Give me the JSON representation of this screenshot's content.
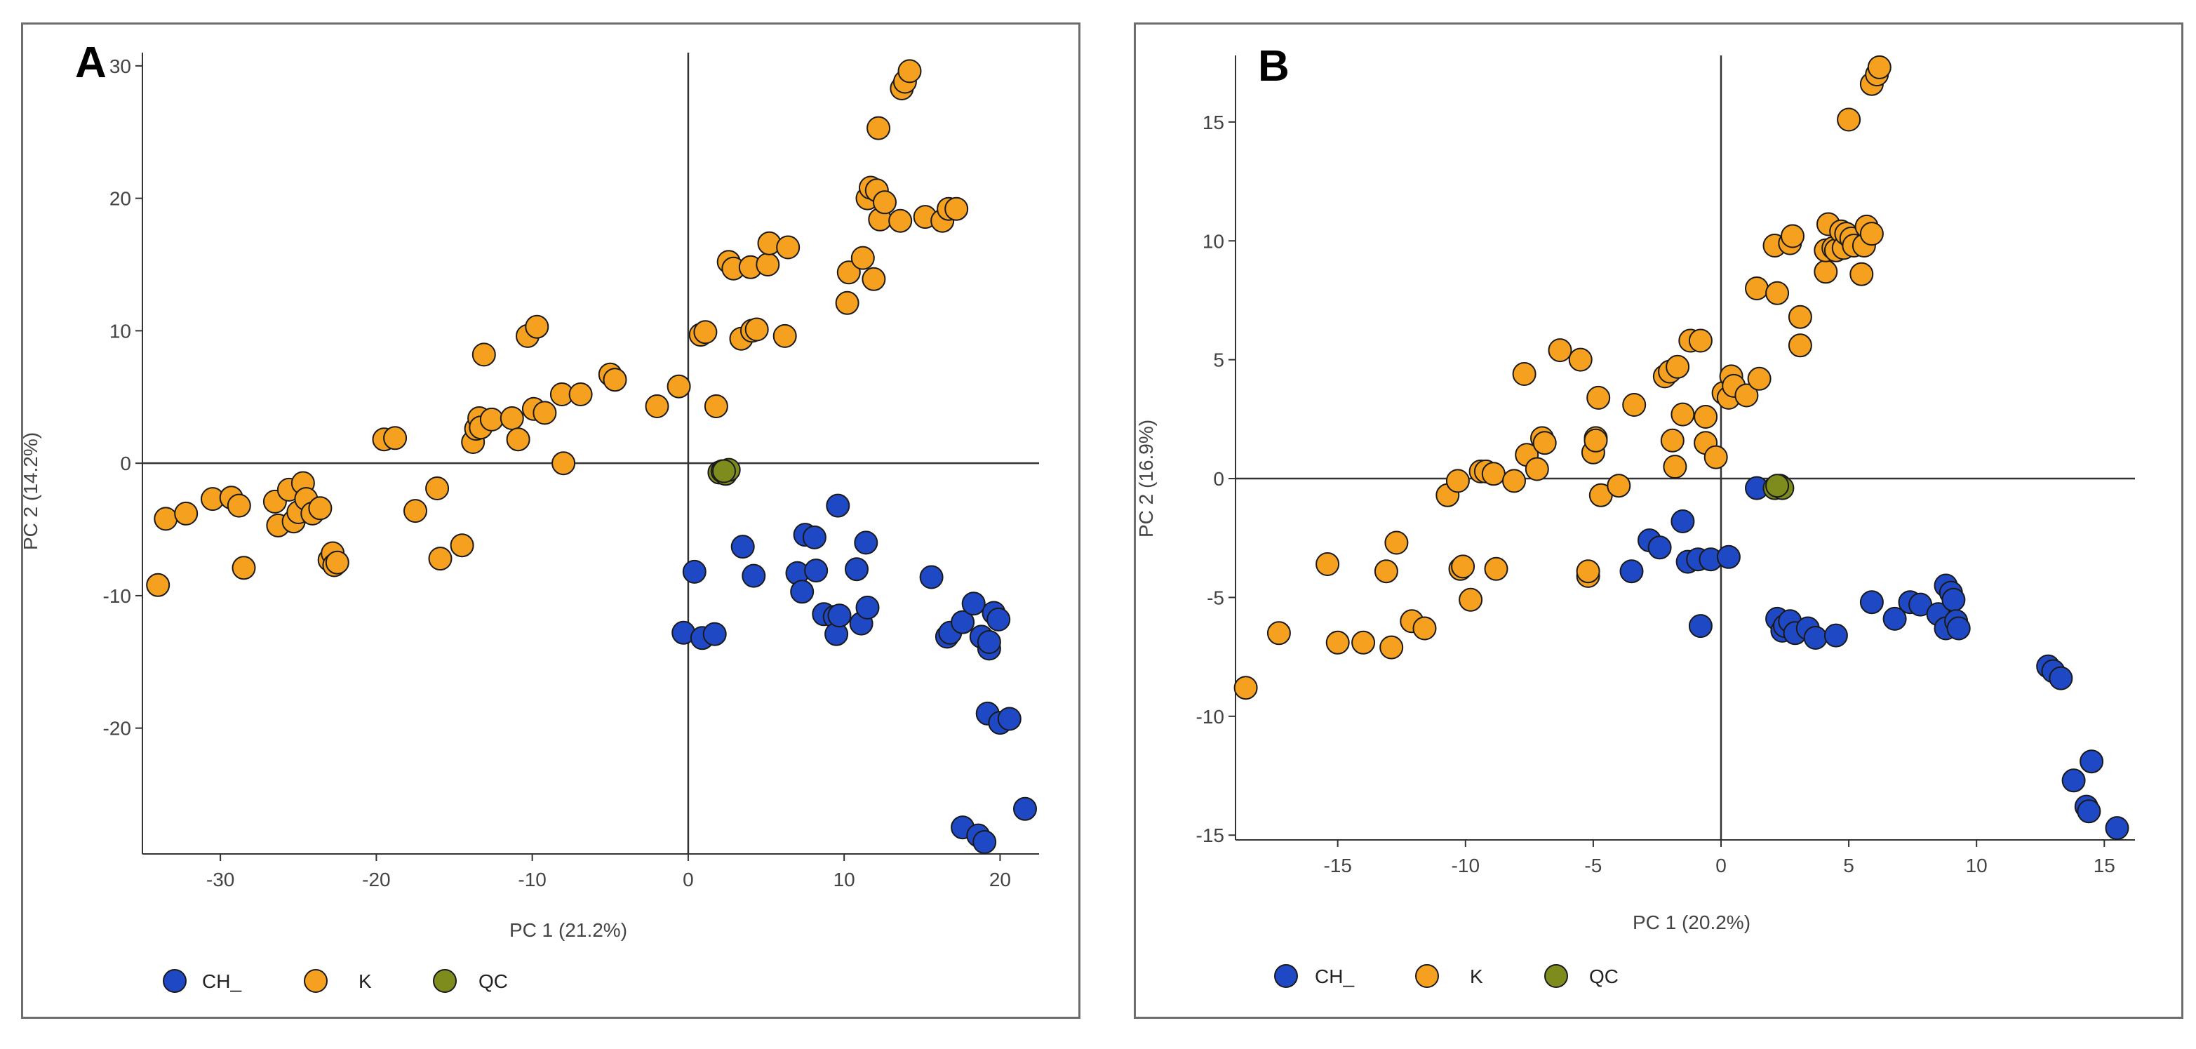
{
  "colors": {
    "CH_": "#1f48c4",
    "K": "#f5a01f",
    "QC": "#7d8c1d",
    "outline": "#1a1a1a",
    "axis": "#333333"
  },
  "chart_data": [
    {
      "type": "scatter",
      "panel_label": "A",
      "xlabel": "PC 1 (21.2%)",
      "ylabel": "PC 2 (14.2%)",
      "xlim": [
        -35,
        22.5
      ],
      "ylim": [
        -29.5,
        31
      ],
      "xticks": [
        -30,
        -20,
        -10,
        0,
        10,
        20
      ],
      "yticks": [
        -20,
        -10,
        0,
        10,
        20,
        30
      ],
      "legend": [
        "CH_",
        "K",
        "QC"
      ],
      "series": [
        {
          "name": "K",
          "points": [
            [
              -34,
              -9.2
            ],
            [
              -33.5,
              -4.2
            ],
            [
              -32.2,
              -3.8
            ],
            [
              -30.5,
              -2.7
            ],
            [
              -29.3,
              -2.6
            ],
            [
              -28.8,
              -3.2
            ],
            [
              -28.5,
              -7.9
            ],
            [
              -26.5,
              -2.9
            ],
            [
              -26.3,
              -4.7
            ],
            [
              -25.6,
              -2
            ],
            [
              -25.3,
              -4.4
            ],
            [
              -25,
              -3.7
            ],
            [
              -24.7,
              -1.5
            ],
            [
              -24.5,
              -2.7
            ],
            [
              -24.1,
              -3.8
            ],
            [
              -23.6,
              -3.4
            ],
            [
              -23,
              -7.3
            ],
            [
              -22.8,
              -6.8
            ],
            [
              -22.7,
              -7.7
            ],
            [
              -22.5,
              -7.5
            ],
            [
              -19.5,
              1.8
            ],
            [
              -18.8,
              1.9
            ],
            [
              -17.5,
              -3.6
            ],
            [
              -16.1,
              -1.9
            ],
            [
              -15.9,
              -7.2
            ],
            [
              -14.5,
              -6.2
            ],
            [
              -13.8,
              1.6
            ],
            [
              -13.6,
              2.6
            ],
            [
              -13.4,
              3.4
            ],
            [
              -13.3,
              2.7
            ],
            [
              -13.1,
              8.2
            ],
            [
              -12.6,
              3.3
            ],
            [
              -11.3,
              3.4
            ],
            [
              -10.9,
              1.8
            ],
            [
              -10.3,
              9.6
            ],
            [
              -9.9,
              4.1
            ],
            [
              -9.7,
              10.3
            ],
            [
              -9.2,
              3.8
            ],
            [
              -8.1,
              5.2
            ],
            [
              -8.0,
              0
            ],
            [
              -6.9,
              5.2
            ],
            [
              -5,
              6.7
            ],
            [
              -4.7,
              6.3
            ],
            [
              -2,
              4.3
            ],
            [
              -0.6,
              5.8
            ],
            [
              0.8,
              9.7
            ],
            [
              1.1,
              9.9
            ],
            [
              1.8,
              4.3
            ],
            [
              2.6,
              15.2
            ],
            [
              2.9,
              14.7
            ],
            [
              3.4,
              9.4
            ],
            [
              4.0,
              14.8
            ],
            [
              4.1,
              10
            ],
            [
              4.4,
              10.1
            ],
            [
              5.1,
              15
            ],
            [
              5.2,
              16.6
            ],
            [
              6.2,
              9.6
            ],
            [
              6.4,
              16.3
            ],
            [
              10.2,
              12.1
            ],
            [
              10.3,
              14.4
            ],
            [
              11.2,
              15.5
            ],
            [
              11.5,
              20
            ],
            [
              11.7,
              20.8
            ],
            [
              11.9,
              13.9
            ],
            [
              12.1,
              20.6
            ],
            [
              12.2,
              25.3
            ],
            [
              12.3,
              18.4
            ],
            [
              12.6,
              19.7
            ],
            [
              13.6,
              18.3
            ],
            [
              13.7,
              28.3
            ],
            [
              13.9,
              28.8
            ],
            [
              14.2,
              29.6
            ],
            [
              15.2,
              18.6
            ],
            [
              16.3,
              18.3
            ],
            [
              16.7,
              19.2
            ],
            [
              17.2,
              19.2
            ]
          ]
        },
        {
          "name": "CH_",
          "points": [
            [
              -0.3,
              -12.8
            ],
            [
              0.4,
              -8.2
            ],
            [
              0.9,
              -13.2
            ],
            [
              1.7,
              -12.9
            ],
            [
              3.5,
              -6.3
            ],
            [
              4.2,
              -8.5
            ],
            [
              7.0,
              -8.3
            ],
            [
              7.3,
              -9.7
            ],
            [
              7.5,
              -5.4
            ],
            [
              8.1,
              -5.6
            ],
            [
              8.2,
              -8.1
            ],
            [
              8.7,
              -11.4
            ],
            [
              9.4,
              -11.6
            ],
            [
              9.5,
              -12.9
            ],
            [
              9.6,
              -3.2
            ],
            [
              9.7,
              -11.5
            ],
            [
              10.8,
              -8
            ],
            [
              11.1,
              -12.1
            ],
            [
              11.4,
              -6
            ],
            [
              11.5,
              -10.9
            ],
            [
              15.6,
              -8.6
            ],
            [
              16.6,
              -13.1
            ],
            [
              16.8,
              -12.8
            ],
            [
              17.6,
              -12
            ],
            [
              17.6,
              -27.5
            ],
            [
              18.3,
              -10.6
            ],
            [
              18.6,
              -28.1
            ],
            [
              18.8,
              -13.1
            ],
            [
              19.0,
              -28.6
            ],
            [
              19.2,
              -18.9
            ],
            [
              19.3,
              -14
            ],
            [
              19.3,
              -13.5
            ],
            [
              19.6,
              -11.3
            ],
            [
              19.9,
              -11.8
            ],
            [
              20,
              -19.6
            ],
            [
              20.6,
              -19.3
            ],
            [
              21.6,
              -26.1
            ]
          ]
        },
        {
          "name": "QC",
          "points": [
            [
              2.0,
              -0.7
            ],
            [
              2.2,
              -0.6
            ],
            [
              2.4,
              -0.8
            ],
            [
              2.6,
              -0.5
            ],
            [
              2.3,
              -0.6
            ]
          ]
        }
      ]
    },
    {
      "type": "scatter",
      "panel_label": "B",
      "xlabel": "PC 1 (20.2%)",
      "ylabel": "PC 2 (16.9%)",
      "xlim": [
        -19,
        16.2
      ],
      "ylim": [
        -15.2,
        17.8
      ],
      "xticks": [
        -15,
        -10,
        -5,
        0,
        5,
        10,
        15
      ],
      "yticks": [
        -15,
        -10,
        -5,
        0,
        5,
        10,
        15
      ],
      "legend": [
        "CH_",
        "K",
        "QC"
      ],
      "series": [
        {
          "name": "K",
          "points": [
            [
              -18.6,
              -8.8
            ],
            [
              -17.3,
              -6.5
            ],
            [
              -15.4,
              -3.6
            ],
            [
              -15,
              -6.9
            ],
            [
              -14,
              -6.9
            ],
            [
              -13.1,
              -3.9
            ],
            [
              -12.9,
              -7.1
            ],
            [
              -12.7,
              -2.7
            ],
            [
              -12.1,
              -6
            ],
            [
              -11.6,
              -6.3
            ],
            [
              -10.7,
              -0.7
            ],
            [
              -10.3,
              -0.1
            ],
            [
              -10.2,
              -3.8
            ],
            [
              -10.1,
              -3.7
            ],
            [
              -9.8,
              -5.1
            ],
            [
              -9.4,
              0.3
            ],
            [
              -9.2,
              0.3
            ],
            [
              -8.9,
              0.2
            ],
            [
              -8.8,
              -3.8
            ],
            [
              -8.1,
              -0.1
            ],
            [
              -7.7,
              4.4
            ],
            [
              -7.6,
              1
            ],
            [
              -7.2,
              0.4
            ],
            [
              -7.0,
              1.7
            ],
            [
              -6.9,
              1.5
            ],
            [
              -6.3,
              5.4
            ],
            [
              -5.5,
              5
            ],
            [
              -5.2,
              -4.1
            ],
            [
              -5.2,
              -3.9
            ],
            [
              -5.0,
              1.1
            ],
            [
              -4.9,
              1.7
            ],
            [
              -4.9,
              1.6
            ],
            [
              -4.8,
              3.4
            ],
            [
              -4.7,
              -0.7
            ],
            [
              -4.0,
              -0.3
            ],
            [
              -3.4,
              3.1
            ],
            [
              -2.2,
              4.3
            ],
            [
              -2.0,
              4.5
            ],
            [
              -1.9,
              1.6
            ],
            [
              -1.8,
              0.5
            ],
            [
              -1.7,
              4.7
            ],
            [
              -1.5,
              2.7
            ],
            [
              -1.2,
              5.8
            ],
            [
              -0.8,
              5.8
            ],
            [
              -0.6,
              2.6
            ],
            [
              -0.6,
              1.5
            ],
            [
              -0.2,
              0.9
            ],
            [
              0.1,
              3.6
            ],
            [
              0.3,
              3.4
            ],
            [
              0.4,
              4.3
            ],
            [
              0.5,
              3.9
            ],
            [
              1.0,
              3.5
            ],
            [
              1.5,
              4.2
            ],
            [
              1.4,
              8
            ],
            [
              2.1,
              9.8
            ],
            [
              2.2,
              7.8
            ],
            [
              2.7,
              9.9
            ],
            [
              2.8,
              10.2
            ],
            [
              3.1,
              6.8
            ],
            [
              3.1,
              5.6
            ],
            [
              4.1,
              8.7
            ],
            [
              4.1,
              9.6
            ],
            [
              4.2,
              10.7
            ],
            [
              4.4,
              9.7
            ],
            [
              4.5,
              9.6
            ],
            [
              4.7,
              10.4
            ],
            [
              4.8,
              9.7
            ],
            [
              4.9,
              10.3
            ],
            [
              5.0,
              15.1
            ],
            [
              5.1,
              10.1
            ],
            [
              5.2,
              9.8
            ],
            [
              5.5,
              8.6
            ],
            [
              5.6,
              9.8
            ],
            [
              5.7,
              10.6
            ],
            [
              5.9,
              10.3
            ],
            [
              5.9,
              16.6
            ],
            [
              6.1,
              17
            ],
            [
              6.2,
              17.3
            ]
          ]
        },
        {
          "name": "CH_",
          "points": [
            [
              -3.5,
              -3.9
            ],
            [
              -2.8,
              -2.6
            ],
            [
              -2.4,
              -2.9
            ],
            [
              -1.5,
              -1.8
            ],
            [
              -1.3,
              -3.5
            ],
            [
              -0.9,
              -3.4
            ],
            [
              -0.8,
              -6.2
            ],
            [
              -0.4,
              -3.4
            ],
            [
              0.3,
              -3.3
            ],
            [
              1.4,
              -0.4
            ],
            [
              2.2,
              -5.9
            ],
            [
              2.4,
              -6.4
            ],
            [
              2.5,
              -6.2
            ],
            [
              2.7,
              -6
            ],
            [
              2.9,
              -6.5
            ],
            [
              3.4,
              -6.3
            ],
            [
              3.7,
              -6.7
            ],
            [
              4.5,
              -6.6
            ],
            [
              5.9,
              -5.2
            ],
            [
              6.8,
              -5.9
            ],
            [
              7.4,
              -5.2
            ],
            [
              7.8,
              -5.3
            ],
            [
              8.5,
              -5.7
            ],
            [
              8.8,
              -6.3
            ],
            [
              8.8,
              -4.5
            ],
            [
              9.0,
              -4.8
            ],
            [
              9.1,
              -5.1
            ],
            [
              9.2,
              -6
            ],
            [
              9.3,
              -6.3
            ],
            [
              12.8,
              -7.9
            ],
            [
              13.0,
              -8.1
            ],
            [
              13.3,
              -8.4
            ],
            [
              13.8,
              -12.7
            ],
            [
              14.3,
              -13.8
            ],
            [
              14.4,
              -14
            ],
            [
              14.5,
              -11.9
            ],
            [
              15.5,
              -14.7
            ]
          ]
        },
        {
          "name": "QC",
          "points": [
            [
              2.1,
              -0.4
            ],
            [
              2.3,
              -0.3
            ],
            [
              2.4,
              -0.4
            ],
            [
              2.2,
              -0.3
            ]
          ]
        }
      ]
    }
  ]
}
